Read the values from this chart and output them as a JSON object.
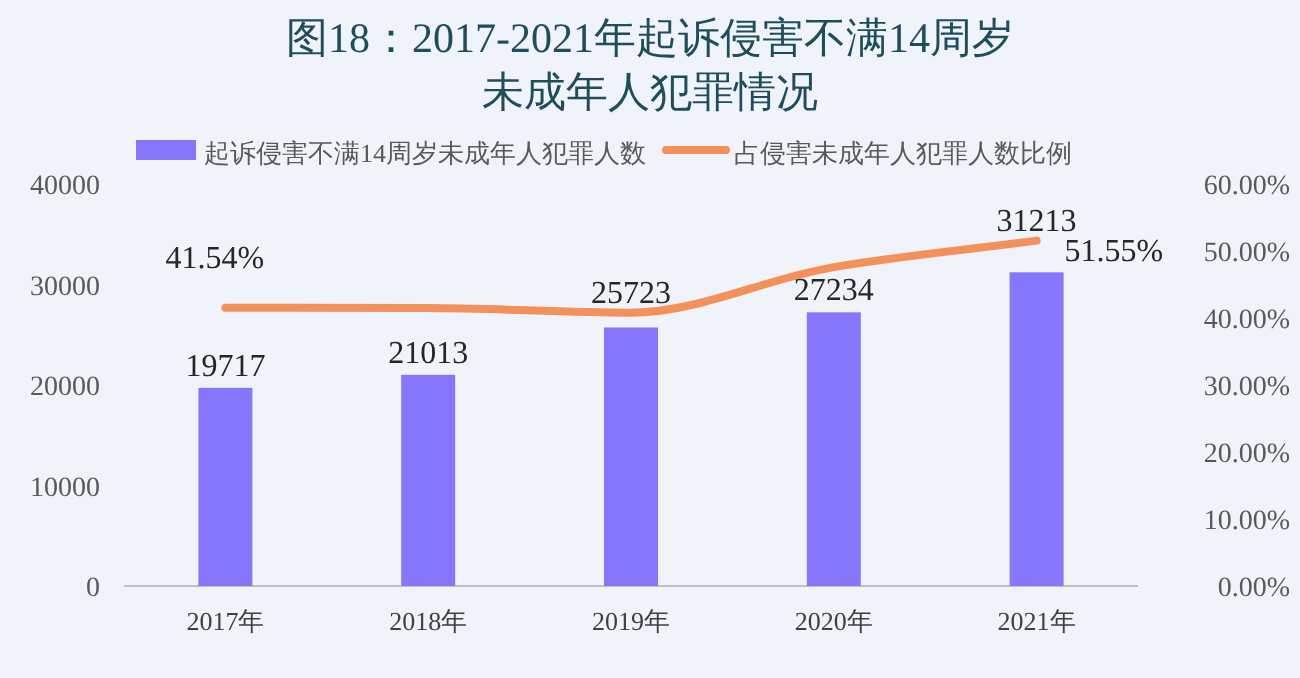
{
  "chart_data": {
    "type": "bar",
    "title": "图18：2017-2021年起诉侵害不满14周岁未成年人犯罪情况",
    "categories": [
      "2017年",
      "2018年",
      "2019年",
      "2020年",
      "2021年"
    ],
    "series": [
      {
        "name": "起诉侵害不满14周岁未成年人犯罪人数",
        "color": "#8577fc",
        "values": [
          19717,
          21013,
          25723,
          27234,
          31213
        ],
        "value_labels": [
          "19717",
          "21013",
          "25723",
          "27234",
          "31213"
        ]
      },
      {
        "name": "占侵害未成年人犯罪人数比例",
        "type": "line",
        "axis": "y2",
        "color": "#f4905a",
        "values": [
          41.54,
          41.5,
          40.8,
          47.6,
          51.55
        ],
        "value_labels": [
          "41.54%",
          null,
          null,
          null,
          "51.55%"
        ]
      }
    ],
    "ylim": [
      0,
      40000
    ],
    "yticks": [
      0,
      10000,
      20000,
      30000,
      40000
    ],
    "y2lim": [
      0,
      60
    ],
    "y2ticks": [
      {
        "value": 0,
        "label": "0.00%"
      },
      {
        "value": 10,
        "label": "10.00%"
      },
      {
        "value": 20,
        "label": "20.00%"
      },
      {
        "value": 30,
        "label": "30.00%"
      },
      {
        "value": 40,
        "label": "40.00%"
      },
      {
        "value": 50,
        "label": "50.00%"
      },
      {
        "value": 60,
        "label": "60.00%"
      }
    ],
    "legend": "top",
    "grid": false,
    "marker": "none"
  }
}
